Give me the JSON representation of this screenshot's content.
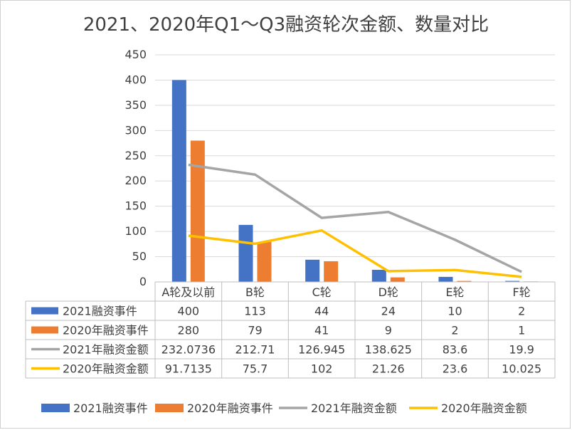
{
  "chart_data": {
    "type": "bar",
    "title": "2021、2020年Q1～Q3融资轮次金额、数量对比",
    "categories": [
      "A轮及以前",
      "B轮",
      "C轮",
      "D轮",
      "E轮",
      "F轮"
    ],
    "ylim": [
      0,
      450
    ],
    "yticks": [
      0,
      50,
      100,
      150,
      200,
      250,
      300,
      350,
      400,
      450
    ],
    "grid": true,
    "legend_position": "bottom",
    "data_table": true,
    "series": [
      {
        "name": "2021融资事件",
        "type": "bar",
        "color": "#4472c4",
        "values": [
          400,
          113,
          44,
          24,
          10,
          2
        ],
        "labels": [
          "400",
          "113",
          "44",
          "24",
          "10",
          "2"
        ]
      },
      {
        "name": "2020年融资事件",
        "type": "bar",
        "color": "#ed7d31",
        "values": [
          280,
          79,
          41,
          9,
          2,
          1
        ],
        "labels": [
          "280",
          "79",
          "41",
          "9",
          "2",
          "1"
        ]
      },
      {
        "name": "2021年融资金额",
        "type": "line",
        "color": "#a5a5a5",
        "values": [
          232.0736,
          212.71,
          126.945,
          138.625,
          83.6,
          19.9
        ],
        "labels": [
          "232.0736",
          "212.71",
          "126.945",
          "138.625",
          "83.6",
          "19.9"
        ]
      },
      {
        "name": "2020年融资金额",
        "type": "line",
        "color": "#ffc000",
        "values": [
          91.7135,
          75.7,
          102,
          21.26,
          23.6,
          10.025
        ],
        "labels": [
          "91.7135",
          "75.7",
          "102",
          "21.26",
          "23.6",
          "10.025"
        ]
      }
    ]
  }
}
